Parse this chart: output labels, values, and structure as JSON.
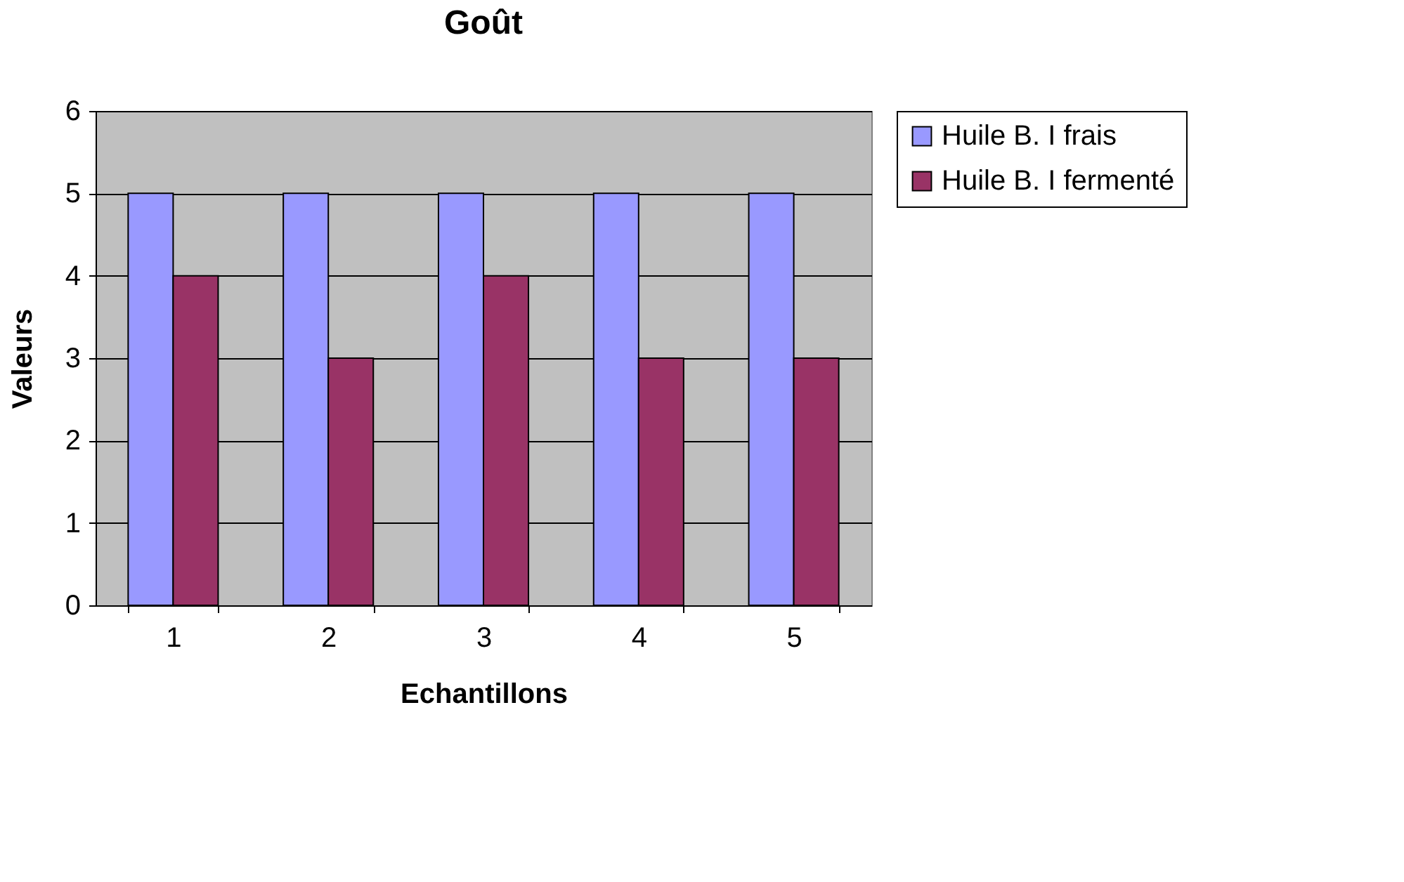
{
  "chart_data": {
    "type": "bar",
    "title": "Goût",
    "xlabel": "Echantillons",
    "ylabel": "Valeurs",
    "categories": [
      "1",
      "2",
      "3",
      "4",
      "5"
    ],
    "series": [
      {
        "name": "Huile B. I frais",
        "color": "#9999ff",
        "values": [
          5,
          5,
          5,
          5,
          5
        ]
      },
      {
        "name": "Huile B. I fermenté",
        "color": "#993366",
        "values": [
          4,
          3,
          4,
          3,
          3
        ]
      }
    ],
    "ylim": [
      0,
      6
    ],
    "yticks": [
      0,
      1,
      2,
      3,
      4,
      5,
      6
    ],
    "grid": "y",
    "legend": "right"
  }
}
